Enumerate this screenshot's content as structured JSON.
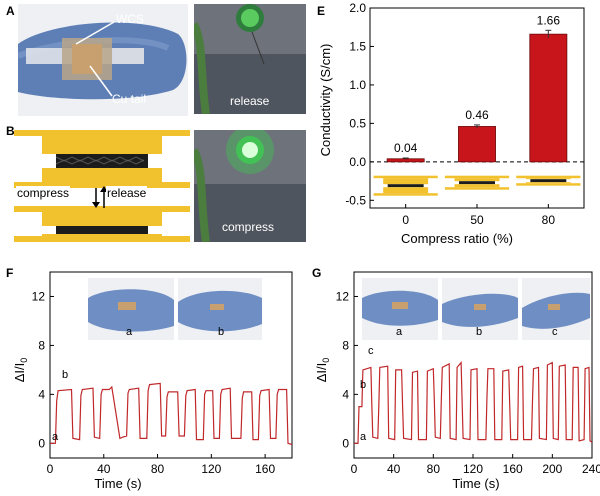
{
  "panels": {
    "A": {
      "letter": "A",
      "annotations": [
        "WCS",
        "Cu tail"
      ]
    },
    "B": {
      "letter": "B",
      "compress": "compress",
      "release": "release"
    },
    "C": {
      "letter": "C",
      "caption": "release"
    },
    "D": {
      "letter": "D",
      "caption": "compress"
    },
    "E": {
      "letter": "E"
    },
    "F": {
      "letter": "F",
      "curve_labels": [
        "a",
        "b"
      ],
      "inset_labels": [
        "a",
        "b"
      ]
    },
    "G": {
      "letter": "G",
      "curve_labels": [
        "a",
        "b",
        "c"
      ],
      "inset_labels": [
        "a",
        "b",
        "c"
      ]
    }
  },
  "colors": {
    "bar": "#c8151b",
    "curve": "#c0282a",
    "gold": "#f2c12e",
    "dark": "#1c1c1c",
    "photo_blue": "#5d7fb6",
    "led_green": "#37d44b"
  },
  "chart_data": [
    {
      "id": "E",
      "type": "bar",
      "categories": [
        "0",
        "50",
        "80"
      ],
      "values": [
        0.04,
        0.46,
        1.66
      ],
      "data_labels": [
        "0.04",
        "0.46",
        "1.66"
      ],
      "error": [
        0.01,
        0.02,
        0.05
      ],
      "xlabel": "Compress ratio (%)",
      "ylabel": "Conductivity (S/cm)",
      "ylim": [
        -0.6,
        2.0
      ],
      "yticks": [
        "-0.5",
        "0.0",
        "0.5",
        "1.0",
        "1.5",
        "2.0"
      ],
      "ytick_values": [
        -0.5,
        0,
        0.5,
        1,
        1.5,
        2
      ],
      "grid": false
    },
    {
      "id": "F",
      "type": "line",
      "xlabel": "Time (s)",
      "ylabel_main": "ΔI/I",
      "ylabel_sub": "0",
      "xlim": [
        0,
        180
      ],
      "ylim": [
        -1.2,
        14
      ],
      "xticks": [
        "0",
        "40",
        "80",
        "120",
        "160"
      ],
      "xtick_values": [
        0,
        40,
        80,
        120,
        160
      ],
      "yticks": [
        "0",
        "4",
        "8",
        "12"
      ],
      "ytick_values": [
        0,
        4,
        8,
        12
      ],
      "series": [
        {
          "points": [
            [
              0,
              0
            ],
            [
              4,
              0
            ],
            [
              5,
              3.5
            ],
            [
              6,
              4.3
            ],
            [
              16,
              4.4
            ],
            [
              17,
              0.4
            ],
            [
              22,
              0.3
            ],
            [
              23,
              3.9
            ],
            [
              24,
              4.4
            ],
            [
              32,
              4.5
            ],
            [
              33,
              0.5
            ],
            [
              37,
              0.4
            ],
            [
              38,
              4
            ],
            [
              39,
              4.4
            ],
            [
              44,
              4.4
            ],
            [
              46,
              4.6
            ],
            [
              52,
              0.4
            ],
            [
              54,
              0.5
            ],
            [
              57,
              0.6
            ],
            [
              58,
              4.1
            ],
            [
              59,
              4.4
            ],
            [
              66,
              4.5
            ],
            [
              67,
              0.4
            ],
            [
              72,
              0.4
            ],
            [
              73,
              4.3
            ],
            [
              74,
              4.8
            ],
            [
              82,
              4.9
            ],
            [
              83,
              0.6
            ],
            [
              86,
              0.6
            ],
            [
              87,
              3.8
            ],
            [
              88,
              4.2
            ],
            [
              95,
              4.2
            ],
            [
              96,
              0.6
            ],
            [
              100,
              0.6
            ],
            [
              101,
              3.9
            ],
            [
              102,
              4.3
            ],
            [
              108,
              4.4
            ],
            [
              109,
              0.3
            ],
            [
              114,
              0.3
            ],
            [
              115,
              4
            ],
            [
              116,
              4.3
            ],
            [
              121,
              4.3
            ],
            [
              122,
              0.4
            ],
            [
              126,
              0.4
            ],
            [
              127,
              4
            ],
            [
              128,
              4.4
            ],
            [
              134,
              4.5
            ],
            [
              135,
              0.4
            ],
            [
              142,
              0.4
            ],
            [
              143,
              3.7
            ],
            [
              144,
              4.2
            ],
            [
              150,
              4.2
            ],
            [
              151,
              0.3
            ],
            [
              155,
              0.3
            ],
            [
              156,
              3.9
            ],
            [
              157,
              4.3
            ],
            [
              163,
              4.4
            ],
            [
              164,
              0.4
            ],
            [
              168,
              0.4
            ],
            [
              169,
              4
            ],
            [
              170,
              4.4
            ],
            [
              176,
              4.4
            ],
            [
              177,
              0
            ],
            [
              180,
              -0.1
            ]
          ]
        }
      ]
    },
    {
      "id": "G",
      "type": "line",
      "xlabel": "Time (s)",
      "ylabel_main": "ΔI/I",
      "ylabel_sub": "0",
      "xlim": [
        0,
        240
      ],
      "ylim": [
        -1.2,
        14
      ],
      "xticks": [
        "0",
        "40",
        "80",
        "120",
        "160",
        "200",
        "240"
      ],
      "xtick_values": [
        0,
        40,
        80,
        120,
        160,
        200,
        240
      ],
      "yticks": [
        "0",
        "4",
        "8",
        "12"
      ],
      "ytick_values": [
        0,
        4,
        8,
        12
      ],
      "series": [
        {
          "points": [
            [
              0,
              0
            ],
            [
              4,
              0
            ],
            [
              5,
              3
            ],
            [
              8,
              3
            ],
            [
              9,
              6
            ],
            [
              17,
              6.2
            ],
            [
              18,
              3.2
            ],
            [
              19,
              0.5
            ],
            [
              24,
              0.4
            ],
            [
              25,
              3
            ],
            [
              26,
              6.2
            ],
            [
              34,
              6.3
            ],
            [
              35,
              0.4
            ],
            [
              41,
              0.3
            ],
            [
              42,
              6
            ],
            [
              48,
              6
            ],
            [
              49,
              3
            ],
            [
              50,
              0.4
            ],
            [
              58,
              0.3
            ],
            [
              59,
              5.8
            ],
            [
              64,
              5.9
            ],
            [
              65,
              0.3
            ],
            [
              73,
              0.3
            ],
            [
              74,
              5.9
            ],
            [
              80,
              6.1
            ],
            [
              81,
              3.6
            ],
            [
              82,
              0.5
            ],
            [
              87,
              0.4
            ],
            [
              88,
              3.5
            ],
            [
              89,
              6.2
            ],
            [
              96,
              6.5
            ],
            [
              97,
              0.4
            ],
            [
              103,
              0.3
            ],
            [
              104,
              6.2
            ],
            [
              108,
              6.6
            ],
            [
              109,
              3.5
            ],
            [
              110,
              0.4
            ],
            [
              117,
              0.3
            ],
            [
              118,
              6
            ],
            [
              124,
              6.1
            ],
            [
              125,
              0.3
            ],
            [
              133,
              0.3
            ],
            [
              134,
              3.6
            ],
            [
              135,
              6.1
            ],
            [
              141,
              6.1
            ],
            [
              142,
              0.3
            ],
            [
              149,
              0.3
            ],
            [
              150,
              5.9
            ],
            [
              156,
              6
            ],
            [
              157,
              3.2
            ],
            [
              158,
              0.3
            ],
            [
              165,
              0.3
            ],
            [
              166,
              6.2
            ],
            [
              170,
              6.3
            ],
            [
              171,
              0.3
            ],
            [
              179,
              0.3
            ],
            [
              180,
              3.5
            ],
            [
              181,
              6.1
            ],
            [
              186,
              6.2
            ],
            [
              187,
              0.4
            ],
            [
              194,
              0.3
            ],
            [
              195,
              6.4
            ],
            [
              200,
              6.6
            ],
            [
              201,
              0.4
            ],
            [
              206,
              0.3
            ],
            [
              207,
              6.3
            ],
            [
              213,
              6.4
            ],
            [
              214,
              0.3
            ],
            [
              220,
              0.3
            ],
            [
              221,
              6.2
            ],
            [
              226,
              6.2
            ],
            [
              227,
              0.2
            ],
            [
              232,
              0.3
            ],
            [
              233,
              6.1
            ],
            [
              237,
              6.2
            ],
            [
              238,
              0.2
            ],
            [
              240,
              0.1
            ]
          ]
        }
      ]
    }
  ]
}
